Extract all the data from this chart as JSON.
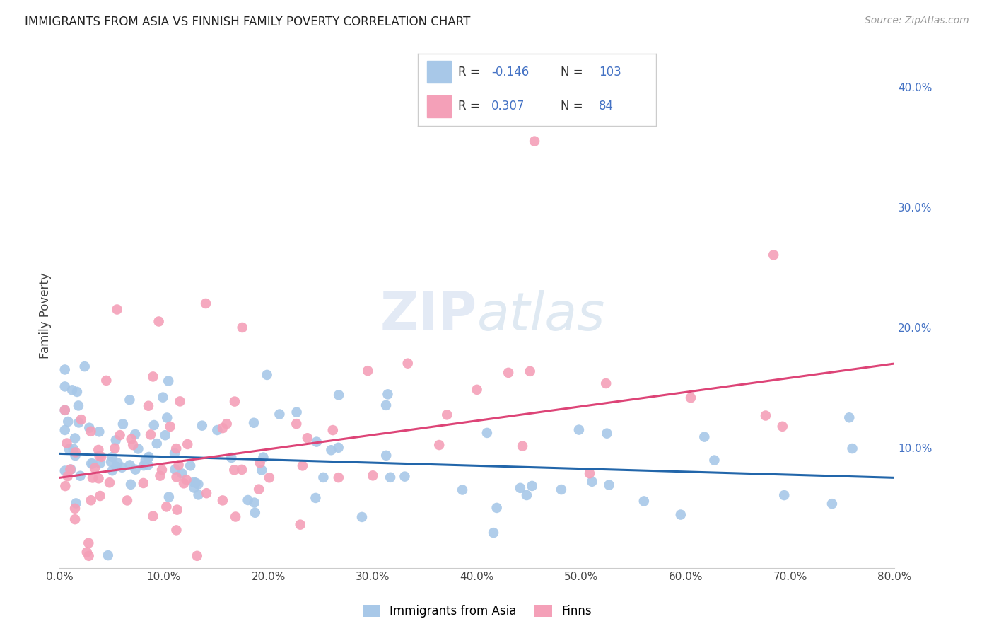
{
  "title": "IMMIGRANTS FROM ASIA VS FINNISH FAMILY POVERTY CORRELATION CHART",
  "source_text": "Source: ZipAtlas.com",
  "ylabel": "Family Poverty",
  "watermark": "ZIPatlas",
  "xlim": [
    0.0,
    0.8
  ],
  "ylim": [
    0.0,
    0.42
  ],
  "xticks": [
    0.0,
    0.1,
    0.2,
    0.3,
    0.4,
    0.5,
    0.6,
    0.7,
    0.8
  ],
  "xtick_labels": [
    "0.0%",
    "10.0%",
    "20.0%",
    "30.0%",
    "40.0%",
    "50.0%",
    "60.0%",
    "70.0%",
    "80.0%"
  ],
  "ytick_labels_right": [
    "10.0%",
    "20.0%",
    "30.0%",
    "40.0%"
  ],
  "yticks_right": [
    0.1,
    0.2,
    0.3,
    0.4
  ],
  "grid_color": "#cccccc",
  "background_color": "#ffffff",
  "blue_color": "#a8c8e8",
  "pink_color": "#f4a0b8",
  "blue_line_color": "#2266aa",
  "pink_line_color": "#dd4477",
  "text_color": "#4472c4",
  "R_blue": -0.146,
  "N_blue": 103,
  "R_pink": 0.307,
  "N_pink": 84,
  "blue_trend_x": [
    0.0,
    0.8
  ],
  "blue_trend_y": [
    0.095,
    0.075
  ],
  "pink_trend_x": [
    0.0,
    0.8
  ],
  "pink_trend_y": [
    0.075,
    0.17
  ],
  "legend_label_blue": "Immigrants from Asia",
  "legend_label_pink": "Finns"
}
